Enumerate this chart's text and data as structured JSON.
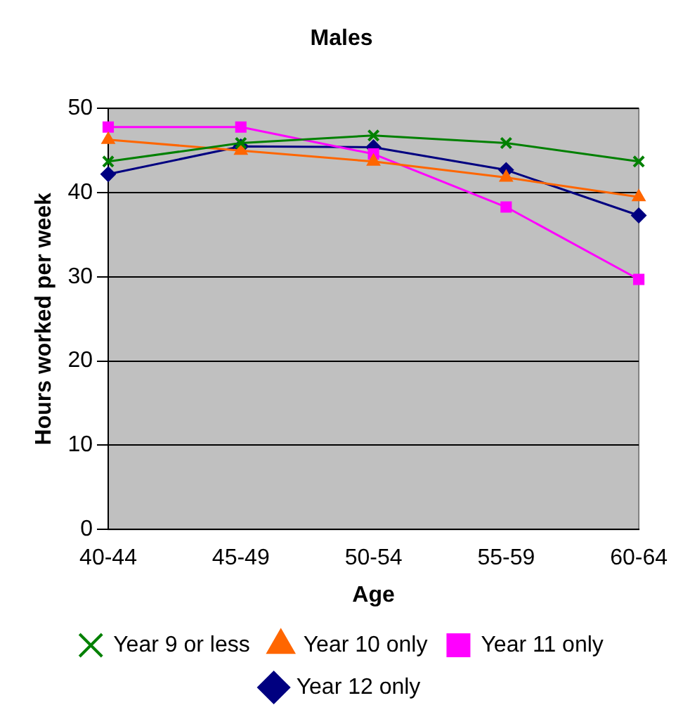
{
  "chart_data": {
    "type": "line",
    "title": "Males",
    "xlabel": "Age",
    "ylabel": "Hours worked per week",
    "categories": [
      "40-44",
      "45-49",
      "50-54",
      "55-59",
      "60-64"
    ],
    "series": [
      {
        "name": "Year 12 only",
        "color": "#000080",
        "marker": "diamond",
        "values": [
          42.2,
          45.5,
          45.4,
          42.7,
          37.3
        ]
      },
      {
        "name": "Year 11 only",
        "color": "#ff00ff",
        "marker": "square",
        "values": [
          47.8,
          47.8,
          44.6,
          38.3,
          29.7
        ]
      },
      {
        "name": "Year 10 only",
        "color": "#ff6600",
        "marker": "triangle",
        "values": [
          46.3,
          45.0,
          43.7,
          41.8,
          39.5
        ]
      },
      {
        "name": "Year 9 or less",
        "color": "#008000",
        "marker": "cross",
        "values": [
          43.7,
          45.9,
          46.8,
          45.9,
          43.7
        ]
      }
    ],
    "ylim": [
      0,
      50
    ],
    "yticks": [
      0,
      10,
      20,
      30,
      40,
      50
    ],
    "grid": "y",
    "legend": "bottom",
    "line_style": "solid"
  }
}
